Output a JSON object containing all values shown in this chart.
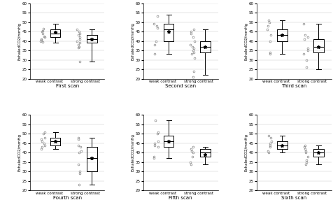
{
  "scans": [
    "First scan",
    "Second scan",
    "Third scan",
    "Fourth scan",
    "Fifth scan",
    "Sixth scan"
  ],
  "ylabel": "ExhaledCO2/mmHg",
  "xlabels": [
    "weak contrast",
    "strong contrast"
  ],
  "ylim": [
    20,
    60
  ],
  "yticks": [
    20,
    25,
    30,
    35,
    40,
    45,
    50,
    55,
    60
  ],
  "boxes": {
    "First scan": {
      "weak": {
        "q1": 42,
        "median": 44,
        "q3": 46,
        "whislo": 39,
        "whishi": 49,
        "mean": 44.5,
        "scatter": [
          45.5,
          46.5,
          45,
          44,
          42.5,
          42,
          41,
          40.5,
          40,
          39.5
        ]
      },
      "strong": {
        "q1": 39,
        "median": 41,
        "q3": 43,
        "whislo": 29,
        "whishi": 46,
        "mean": 41,
        "scatter": [
          46,
          45,
          44,
          43,
          42,
          41,
          40,
          39,
          38,
          37,
          36.5,
          29
        ]
      }
    },
    "Second scan": {
      "weak": {
        "q1": 40,
        "median": 46,
        "q3": 49,
        "whislo": 33,
        "whishi": 54,
        "mean": 45,
        "scatter": [
          53,
          49,
          48,
          47,
          40,
          38,
          33
        ]
      },
      "strong": {
        "q1": 34,
        "median": 37,
        "q3": 40,
        "whislo": 22,
        "whishi": 46,
        "mean": 37,
        "scatter": [
          46,
          45,
          44,
          42,
          40,
          38,
          37,
          36,
          35,
          34,
          33,
          31,
          24,
          21
        ]
      }
    },
    "Third scan": {
      "weak": {
        "q1": 40,
        "median": 43,
        "q3": 46,
        "whislo": 33,
        "whishi": 51,
        "mean": 43,
        "scatter": [
          51,
          50,
          48,
          46,
          43,
          40,
          34,
          33
        ]
      },
      "strong": {
        "q1": 34,
        "median": 37,
        "q3": 41,
        "whislo": 25,
        "whishi": 49,
        "mean": 37,
        "scatter": [
          49,
          43,
          42,
          41,
          36,
          35,
          33,
          30,
          26
        ]
      }
    },
    "Fourth scan": {
      "weak": {
        "q1": 44,
        "median": 46,
        "q3": 48,
        "whislo": 42,
        "whishi": 51,
        "mean": 46,
        "scatter": [
          51,
          50,
          48,
          47,
          46,
          45,
          44,
          43,
          42
        ]
      },
      "strong": {
        "q1": 30,
        "median": 37,
        "q3": 43,
        "whislo": 23,
        "whishi": 48,
        "mean": 37,
        "scatter": [
          48,
          47,
          44,
          43,
          41,
          40,
          34,
          30,
          29,
          23
        ]
      }
    },
    "Fifth scan": {
      "weak": {
        "q1": 43,
        "median": 46,
        "q3": 49,
        "whislo": 37,
        "whishi": 57,
        "mean": 46,
        "scatter": [
          57,
          51,
          50,
          46,
          45,
          44,
          43,
          38,
          37
        ]
      },
      "strong": {
        "q1": 38,
        "median": 40,
        "q3": 42,
        "whislo": 34,
        "whishi": 43,
        "mean": 39,
        "scatter": [
          43,
          42,
          41,
          40,
          38,
          35,
          34
        ]
      }
    },
    "Sixth scan": {
      "weak": {
        "q1": 42,
        "median": 44,
        "q3": 46,
        "whislo": 40,
        "whishi": 49,
        "mean": 44,
        "scatter": [
          49,
          48,
          46,
          45,
          44,
          43,
          41,
          40
        ]
      },
      "strong": {
        "q1": 38,
        "median": 40,
        "q3": 42,
        "whislo": 34,
        "whishi": 44,
        "mean": 40,
        "scatter": [
          44,
          43,
          42,
          41,
          40,
          38,
          36,
          35,
          34
        ]
      }
    }
  }
}
